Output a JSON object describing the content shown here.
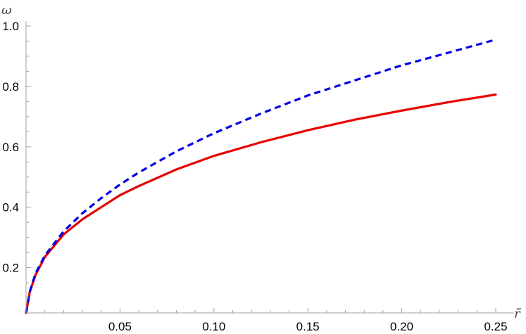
{
  "chart_data": {
    "type": "line",
    "title": "",
    "xlabel": "r̃",
    "ylabel": "ω",
    "xlim": [
      0,
      0.25
    ],
    "ylim": [
      0.05,
      1.0
    ],
    "x_ticks": [
      0.05,
      0.1,
      0.15,
      0.2,
      0.25
    ],
    "x_tick_labels": [
      "0.05",
      "0.10",
      "0.15",
      "0.20",
      "0.25"
    ],
    "y_ticks": [
      0.2,
      0.4,
      0.6,
      0.8,
      1.0
    ],
    "y_tick_labels": [
      "0.2",
      "0.4",
      "0.6",
      "0.8",
      "1.0"
    ],
    "grid": false,
    "series": [
      {
        "color": "#e80000",
        "dash": "solid",
        "x": [
          0.0,
          0.002,
          0.005,
          0.01,
          0.02,
          0.03,
          0.04,
          0.05,
          0.06,
          0.08,
          0.1,
          0.125,
          0.15,
          0.175,
          0.2,
          0.225,
          0.25
        ],
        "y": [
          0.05,
          0.12,
          0.175,
          0.235,
          0.31,
          0.36,
          0.4,
          0.44,
          0.47,
          0.525,
          0.57,
          0.615,
          0.655,
          0.69,
          0.72,
          0.748,
          0.773
        ]
      },
      {
        "color": "#0000e6",
        "dash": "dashed",
        "x": [
          0.0,
          0.002,
          0.005,
          0.01,
          0.02,
          0.03,
          0.04,
          0.05,
          0.06,
          0.08,
          0.1,
          0.125,
          0.15,
          0.175,
          0.2,
          0.225,
          0.25
        ],
        "y": [
          0.05,
          0.12,
          0.18,
          0.24,
          0.32,
          0.38,
          0.43,
          0.475,
          0.515,
          0.585,
          0.645,
          0.71,
          0.77,
          0.82,
          0.87,
          0.912,
          0.955
        ]
      }
    ]
  }
}
